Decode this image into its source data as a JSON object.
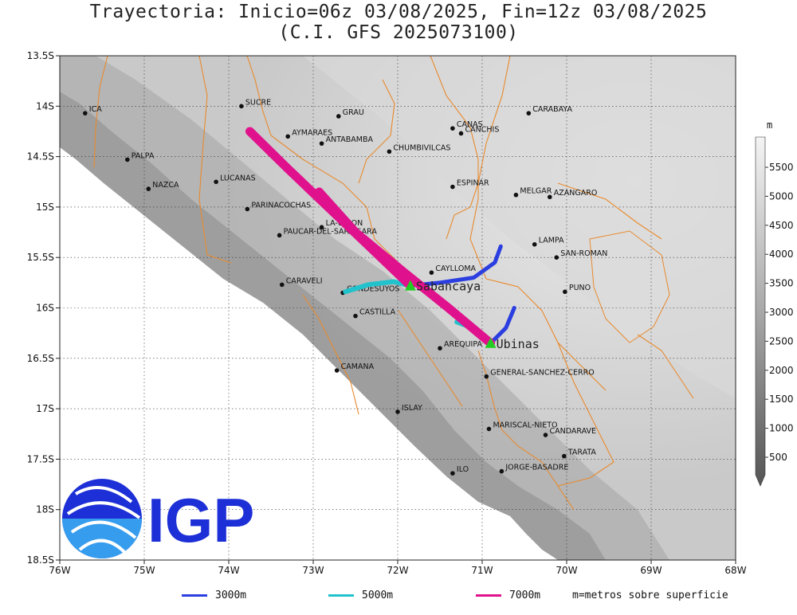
{
  "title": {
    "line1": "Trayectoria: Inicio=06z 03/08/2025, Fin=12z 03/08/2025",
    "line2": "(C.I. GFS 2025073100)"
  },
  "colors": {
    "border": "#e88a2e",
    "ocean": "#ffffff",
    "traj_3000": "#2b3ee0",
    "traj_5000": "#22c2cc",
    "traj_7000": "#e0118c",
    "volcano": "#22cc22",
    "igp_blue": "#1d2fd6"
  },
  "map": {
    "lon_range": [
      -76,
      -68
    ],
    "lat_range": [
      -18.5,
      -13.5
    ],
    "lon_ticks": [
      {
        "v": -76,
        "label": "76W"
      },
      {
        "v": -75,
        "label": "75W"
      },
      {
        "v": -74,
        "label": "74W"
      },
      {
        "v": -73,
        "label": "73W"
      },
      {
        "v": -72,
        "label": "72W"
      },
      {
        "v": -71,
        "label": "71W"
      },
      {
        "v": -70,
        "label": "70W"
      },
      {
        "v": -69,
        "label": "69W"
      },
      {
        "v": -68,
        "label": "68W"
      }
    ],
    "lat_ticks": [
      {
        "v": -13.5,
        "label": "13.5S"
      },
      {
        "v": -14,
        "label": "14S"
      },
      {
        "v": -14.5,
        "label": "14.5S"
      },
      {
        "v": -15,
        "label": "15S"
      },
      {
        "v": -15.5,
        "label": "15.5S"
      },
      {
        "v": -16,
        "label": "16S"
      },
      {
        "v": -16.5,
        "label": "16.5S"
      },
      {
        "v": -17,
        "label": "17S"
      },
      {
        "v": -17.5,
        "label": "17.5S"
      },
      {
        "v": -18,
        "label": "18S"
      },
      {
        "v": -18.5,
        "label": "18.5S"
      }
    ]
  },
  "places": [
    {
      "name": "ICA",
      "lon": -75.7,
      "lat": -14.07
    },
    {
      "name": "SUCRE",
      "lon": -73.85,
      "lat": -14.0
    },
    {
      "name": "GRAU",
      "lon": -72.7,
      "lat": -14.1
    },
    {
      "name": "CARABAYA",
      "lon": -70.45,
      "lat": -14.07
    },
    {
      "name": "AYMARAES",
      "lon": -73.3,
      "lat": -14.3
    },
    {
      "name": "CANAS",
      "lon": -71.35,
      "lat": -14.22
    },
    {
      "name": "CANCHIS",
      "lon": -71.25,
      "lat": -14.27
    },
    {
      "name": "ANTABAMBA",
      "lon": -72.9,
      "lat": -14.37
    },
    {
      "name": "CHUMBIVILCAS",
      "lon": -72.1,
      "lat": -14.45
    },
    {
      "name": "PALPA",
      "lon": -75.2,
      "lat": -14.53
    },
    {
      "name": "LUCANAS",
      "lon": -74.15,
      "lat": -14.75
    },
    {
      "name": "ESPINAR",
      "lon": -71.35,
      "lat": -14.8
    },
    {
      "name": "NAZCA",
      "lon": -74.95,
      "lat": -14.82
    },
    {
      "name": "MELGAR",
      "lon": -70.6,
      "lat": -14.88
    },
    {
      "name": "AZANGARO",
      "lon": -70.2,
      "lat": -14.9
    },
    {
      "name": "PARINACOCHAS",
      "lon": -73.78,
      "lat": -15.02
    },
    {
      "name": "LA-UNION",
      "lon": -72.9,
      "lat": -15.2
    },
    {
      "name": "PAUCAR-DEL-SARA-SARA",
      "lon": -73.4,
      "lat": -15.28
    },
    {
      "name": "LAMPA",
      "lon": -70.38,
      "lat": -15.37
    },
    {
      "name": "SAN-ROMAN",
      "lon": -70.12,
      "lat": -15.5
    },
    {
      "name": "CAYLLOMA",
      "lon": -71.6,
      "lat": -15.65
    },
    {
      "name": "CARAVELI",
      "lon": -73.37,
      "lat": -15.77
    },
    {
      "name": "CONDESUYOS",
      "lon": -72.65,
      "lat": -15.85
    },
    {
      "name": "PUNO",
      "lon": -70.02,
      "lat": -15.84
    },
    {
      "name": "CASTILLA",
      "lon": -72.5,
      "lat": -16.08
    },
    {
      "name": "AREQUIPA",
      "lon": -71.5,
      "lat": -16.4
    },
    {
      "name": "CAMANA",
      "lon": -72.72,
      "lat": -16.62
    },
    {
      "name": "GENERAL-SANCHEZ-CERRO",
      "lon": -70.95,
      "lat": -16.68
    },
    {
      "name": "ISLAY",
      "lon": -72.0,
      "lat": -17.03
    },
    {
      "name": "MARISCAL-NIETO",
      "lon": -70.92,
      "lat": -17.2
    },
    {
      "name": "CANDARAVE",
      "lon": -70.25,
      "lat": -17.26
    },
    {
      "name": "TARATA",
      "lon": -70.03,
      "lat": -17.47
    },
    {
      "name": "ILO",
      "lon": -71.35,
      "lat": -17.64
    },
    {
      "name": "JORGE-BASADRE",
      "lon": -70.77,
      "lat": -17.62
    }
  ],
  "volcanoes": [
    {
      "name": "Sabancaya",
      "lon": -71.85,
      "lat": -15.78
    },
    {
      "name": "Ubinas",
      "lon": -70.9,
      "lat": -16.35
    }
  ],
  "trajectories": [
    {
      "volcano": "Sabancaya",
      "level": "3000m",
      "points": [
        [
          -71.85,
          -15.78
        ],
        [
          -71.5,
          -15.75
        ],
        [
          -71.1,
          -15.7
        ],
        [
          -70.85,
          -15.55
        ],
        [
          -70.78,
          -15.39
        ]
      ]
    },
    {
      "volcano": "Sabancaya",
      "level": "5000m",
      "points": [
        [
          -71.85,
          -15.78
        ],
        [
          -72.05,
          -15.74
        ],
        [
          -72.35,
          -15.77
        ],
        [
          -72.62,
          -15.84
        ]
      ]
    },
    {
      "volcano": "Sabancaya",
      "level": "7000m",
      "points": [
        [
          -71.85,
          -15.78
        ],
        [
          -72.3,
          -15.42
        ],
        [
          -72.8,
          -15.02
        ],
        [
          -73.3,
          -14.62
        ],
        [
          -73.75,
          -14.25
        ]
      ]
    },
    {
      "volcano": "Ubinas",
      "level": "3000m",
      "points": [
        [
          -70.9,
          -16.35
        ],
        [
          -70.72,
          -16.2
        ],
        [
          -70.62,
          -16.0
        ]
      ]
    },
    {
      "volcano": "Ubinas",
      "level": "5000m",
      "points": [
        [
          -70.9,
          -16.35
        ],
        [
          -71.05,
          -16.22
        ],
        [
          -71.3,
          -16.14
        ]
      ]
    },
    {
      "volcano": "Ubinas",
      "level": "7000m",
      "points": [
        [
          -70.9,
          -16.35
        ],
        [
          -71.4,
          -16.0
        ],
        [
          -71.95,
          -15.63
        ],
        [
          -72.5,
          -15.25
        ],
        [
          -72.93,
          -14.85
        ]
      ]
    }
  ],
  "colorbar": {
    "unit": "m",
    "labels": [
      "500",
      "1000",
      "1500",
      "2000",
      "2500",
      "3000",
      "3500",
      "4000",
      "4500",
      "5000",
      "5500"
    ]
  },
  "legend": [
    {
      "label": "3000m",
      "color": "#2b3ee0"
    },
    {
      "label": "5000m",
      "color": "#22c2cc"
    },
    {
      "label": "7000m",
      "color": "#e0118c"
    }
  ],
  "legend_note": "m=metros sobre superficie",
  "logo": {
    "text": "IGP"
  }
}
